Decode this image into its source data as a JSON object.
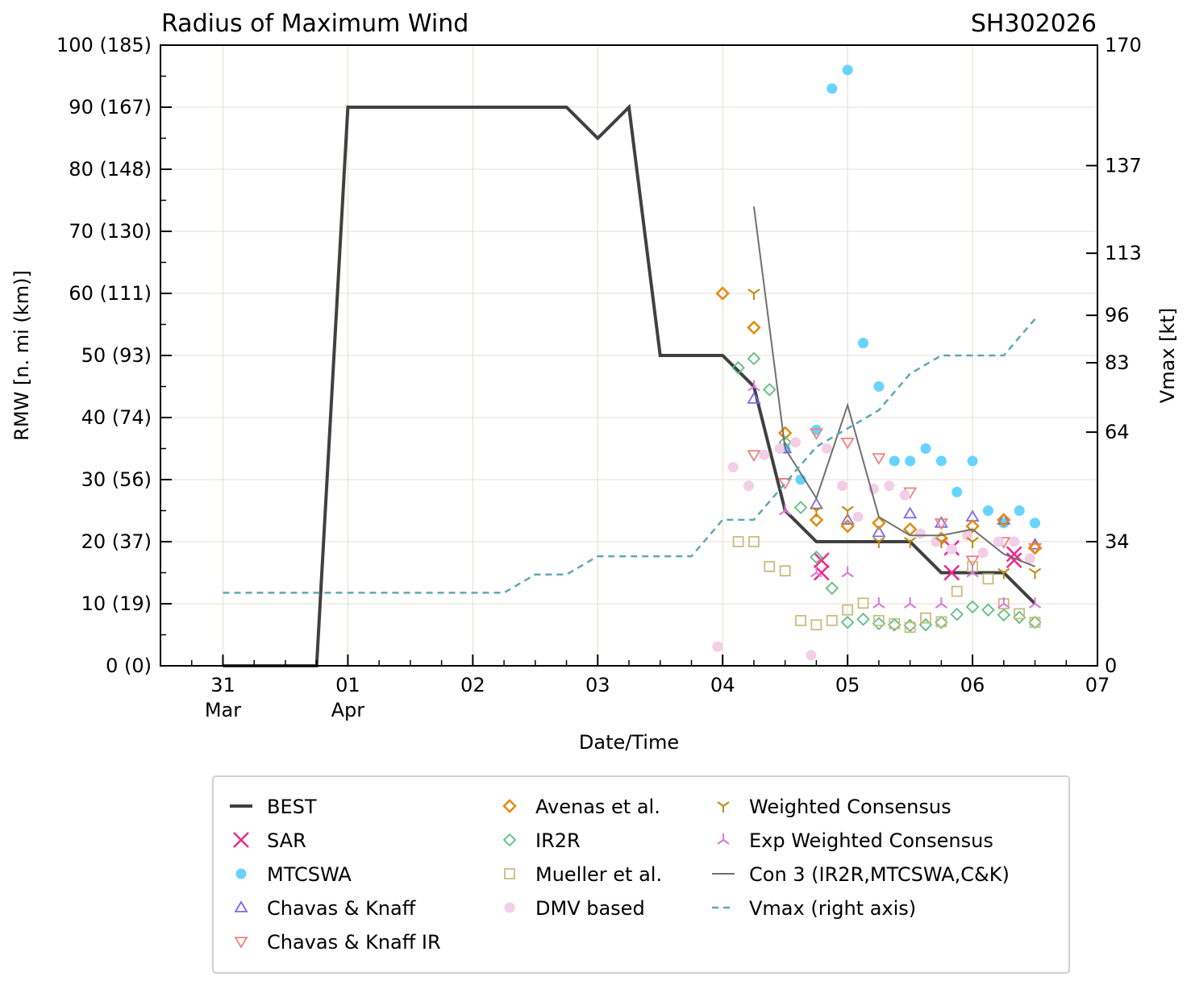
{
  "chart_data": {
    "type": "line",
    "title": "Radius of Maximum Wind",
    "storm_id": "SH302026",
    "xlabel": "Date/Time",
    "ylabel": "RMW [n. mi (km)]",
    "ylabel_right": "Vmax [kt]",
    "xlim": [
      "03-30 12:00",
      "04-07 00:00"
    ],
    "ylim": [
      0,
      100
    ],
    "ylim_right": [
      0,
      170
    ],
    "grid": true,
    "legend_placement": "below",
    "x_ticks": [
      {
        "at": "03-31 00:00",
        "day": "31",
        "month": "Mar"
      },
      {
        "at": "04-01 00:00",
        "day": "01",
        "month": "Apr"
      },
      {
        "at": "04-02 00:00",
        "day": "02",
        "month": ""
      },
      {
        "at": "04-03 00:00",
        "day": "03",
        "month": ""
      },
      {
        "at": "04-04 00:00",
        "day": "04",
        "month": ""
      },
      {
        "at": "04-05 00:00",
        "day": "05",
        "month": ""
      },
      {
        "at": "04-06 00:00",
        "day": "06",
        "month": ""
      },
      {
        "at": "04-07 00:00",
        "day": "07",
        "month": ""
      }
    ],
    "y_ticks": [
      {
        "v": 0,
        "label": "0 (0)"
      },
      {
        "v": 10,
        "label": "10 (19)"
      },
      {
        "v": 20,
        "label": "20 (37)"
      },
      {
        "v": 30,
        "label": "30 (56)"
      },
      {
        "v": 40,
        "label": "40 (74)"
      },
      {
        "v": 50,
        "label": "50 (93)"
      },
      {
        "v": 60,
        "label": "60 (111)"
      },
      {
        "v": 70,
        "label": "70 (130)"
      },
      {
        "v": 80,
        "label": "80 (148)"
      },
      {
        "v": 90,
        "label": "90 (167)"
      },
      {
        "v": 100,
        "label": "100 (185)"
      }
    ],
    "y_ticks_right": [
      0,
      34,
      64,
      83,
      96,
      113,
      137,
      170
    ],
    "series": [
      {
        "name": "BEST",
        "kind": "line",
        "color": "#404040",
        "points": [
          [
            "03-31 00:00",
            0
          ],
          [
            "03-31 18:00",
            0
          ],
          [
            "04-01 00:00",
            90
          ],
          [
            "04-02 18:00",
            90
          ],
          [
            "04-03 00:00",
            85
          ],
          [
            "04-03 06:00",
            90
          ],
          [
            "04-03 12:00",
            50
          ],
          [
            "04-04 00:00",
            50
          ],
          [
            "04-04 06:00",
            45
          ],
          [
            "04-04 12:00",
            25
          ],
          [
            "04-04 18:00",
            20
          ],
          [
            "04-05 12:00",
            20
          ],
          [
            "04-05 18:00",
            15
          ],
          [
            "04-06 06:00",
            15
          ],
          [
            "04-06 12:00",
            10
          ]
        ]
      },
      {
        "name": "SAR",
        "kind": "x",
        "color": "#f0288c",
        "points": [
          [
            "04-04 19:00",
            17
          ],
          [
            "04-04 19:00",
            15
          ],
          [
            "04-05 20:00",
            19
          ],
          [
            "04-05 20:00",
            15
          ],
          [
            "04-06 08:00",
            18
          ],
          [
            "04-06 08:00",
            17
          ]
        ]
      },
      {
        "name": "MTCSWA",
        "kind": "circle",
        "color": "#66d4ff",
        "points": [
          [
            "04-04 12:00",
            35
          ],
          [
            "04-04 15:00",
            30
          ],
          [
            "04-04 18:00",
            38
          ],
          [
            "04-04 21:00",
            93
          ],
          [
            "04-05 00:00",
            96
          ],
          [
            "04-05 03:00",
            52
          ],
          [
            "04-05 06:00",
            45
          ],
          [
            "04-05 09:00",
            33
          ],
          [
            "04-05 12:00",
            33
          ],
          [
            "04-05 15:00",
            35
          ],
          [
            "04-05 18:00",
            33
          ],
          [
            "04-05 21:00",
            28
          ],
          [
            "04-06 00:00",
            33
          ],
          [
            "04-06 03:00",
            25
          ],
          [
            "04-06 06:00",
            23
          ],
          [
            "04-06 09:00",
            25
          ],
          [
            "04-06 12:00",
            23
          ]
        ]
      },
      {
        "name": "Chavas & Knaff",
        "kind": "tri-up",
        "color": "#7b68ee",
        "points": [
          [
            "04-04 06:00",
            43
          ],
          [
            "04-04 12:00",
            35
          ],
          [
            "04-04 18:00",
            26
          ],
          [
            "04-05 00:00",
            23.5
          ],
          [
            "04-05 06:00",
            21.5
          ],
          [
            "04-05 12:00",
            24.5
          ],
          [
            "04-05 18:00",
            23
          ],
          [
            "04-06 00:00",
            24
          ],
          [
            "04-06 06:00",
            23.5
          ],
          [
            "04-06 12:00",
            19.5
          ]
        ]
      },
      {
        "name": "Chavas & Knaff IR",
        "kind": "tri-down",
        "color": "#f08080",
        "points": [
          [
            "04-04 06:00",
            34
          ],
          [
            "04-04 12:00",
            29.5
          ],
          [
            "04-04 18:00",
            37.5
          ],
          [
            "04-05 00:00",
            36
          ],
          [
            "04-05 06:00",
            33.5
          ],
          [
            "04-05 12:00",
            28
          ],
          [
            "04-05 18:00",
            23
          ],
          [
            "04-06 00:00",
            17
          ],
          [
            "04-06 06:00",
            20
          ],
          [
            "04-06 12:00",
            19
          ]
        ]
      },
      {
        "name": "Avenas et al.",
        "kind": "diamond",
        "color": "#e08c10",
        "points": [
          [
            "04-04 00:00",
            60
          ],
          [
            "04-04 06:00",
            54.5
          ],
          [
            "04-04 12:00",
            37.5
          ],
          [
            "04-04 18:00",
            23.5
          ],
          [
            "04-05 00:00",
            22.5
          ],
          [
            "04-05 06:00",
            23
          ],
          [
            "04-05 12:00",
            22
          ],
          [
            "04-05 18:00",
            20.5
          ],
          [
            "04-06 00:00",
            22.5
          ],
          [
            "04-06 06:00",
            23.5
          ],
          [
            "04-06 12:00",
            19
          ]
        ]
      },
      {
        "name": "IR2R",
        "kind": "diamond",
        "color": "#5cbf80",
        "points": [
          [
            "04-04 03:00",
            48
          ],
          [
            "04-04 06:00",
            49.5
          ],
          [
            "04-04 09:00",
            44.5
          ],
          [
            "04-04 12:00",
            36
          ],
          [
            "04-04 15:00",
            25.5
          ],
          [
            "04-04 18:00",
            17.5
          ],
          [
            "04-04 21:00",
            12.5
          ],
          [
            "04-05 00:00",
            7
          ],
          [
            "04-05 03:00",
            7.5
          ],
          [
            "04-05 06:00",
            6.8
          ],
          [
            "04-05 09:00",
            6.6
          ],
          [
            "04-05 12:00",
            6.5
          ],
          [
            "04-05 15:00",
            6.6
          ],
          [
            "04-05 18:00",
            7
          ],
          [
            "04-05 21:00",
            8.3
          ],
          [
            "04-06 00:00",
            9.5
          ],
          [
            "04-06 03:00",
            9
          ],
          [
            "04-06 06:00",
            8.2
          ],
          [
            "04-06 09:00",
            7.8
          ],
          [
            "04-06 12:00",
            7
          ]
        ]
      },
      {
        "name": "Mueller et al.",
        "kind": "square",
        "color": "#c8bd80",
        "points": [
          [
            "04-04 03:00",
            20
          ],
          [
            "04-04 06:00",
            20
          ],
          [
            "04-04 09:00",
            16
          ],
          [
            "04-04 12:00",
            15.3
          ],
          [
            "04-04 15:00",
            7.3
          ],
          [
            "04-04 18:00",
            6.6
          ],
          [
            "04-04 21:00",
            7.3
          ],
          [
            "04-05 00:00",
            9
          ],
          [
            "04-05 03:00",
            10.1
          ],
          [
            "04-05 06:00",
            7.3
          ],
          [
            "04-05 09:00",
            6.8
          ],
          [
            "04-05 12:00",
            6.2
          ],
          [
            "04-05 15:00",
            7.7
          ],
          [
            "04-05 18:00",
            7.1
          ],
          [
            "04-05 21:00",
            12
          ],
          [
            "04-06 00:00",
            16
          ],
          [
            "04-06 03:00",
            14
          ],
          [
            "04-06 06:00",
            10
          ],
          [
            "04-06 09:00",
            8.4
          ],
          [
            "04-06 12:00",
            7
          ]
        ]
      },
      {
        "name": "DMV based",
        "kind": "dot",
        "color": "#f2cfe6",
        "points": [
          [
            "04-03 23:00",
            3.1
          ],
          [
            "04-04 02:00",
            32
          ],
          [
            "04-04 05:00",
            29
          ],
          [
            "04-04 08:00",
            34
          ],
          [
            "04-04 11:00",
            35
          ],
          [
            "04-04 14:00",
            36
          ],
          [
            "04-04 17:00",
            1.7
          ],
          [
            "04-04 20:00",
            35
          ],
          [
            "04-04 23:00",
            29
          ],
          [
            "04-05 02:00",
            24
          ],
          [
            "04-05 05:00",
            28.5
          ],
          [
            "04-05 08:00",
            29
          ],
          [
            "04-05 11:00",
            27.5
          ],
          [
            "04-05 14:00",
            21.3
          ],
          [
            "04-05 17:00",
            20
          ],
          [
            "04-05 20:00",
            18.8
          ],
          [
            "04-05 23:00",
            21
          ],
          [
            "04-06 02:00",
            18.2
          ],
          [
            "04-06 05:00",
            20
          ],
          [
            "04-06 08:00",
            20
          ],
          [
            "04-06 11:00",
            17.3
          ]
        ]
      },
      {
        "name": "Weighted Consensus",
        "kind": "y",
        "color": "#c08a10",
        "points": [
          [
            "04-04 06:00",
            60
          ],
          [
            "04-04 18:00",
            25
          ],
          [
            "04-05 00:00",
            25
          ],
          [
            "04-05 06:00",
            20
          ],
          [
            "04-05 12:00",
            20
          ],
          [
            "04-05 18:00",
            20
          ],
          [
            "04-06 00:00",
            20
          ],
          [
            "04-06 06:00",
            15
          ],
          [
            "04-06 12:00",
            15
          ]
        ]
      },
      {
        "name": "Exp Weighted Consensus",
        "kind": "y-inv",
        "color": "#d878d8",
        "points": [
          [
            "04-04 06:00",
            45
          ],
          [
            "04-04 12:00",
            25
          ],
          [
            "04-04 18:00",
            15
          ],
          [
            "04-05 00:00",
            15
          ],
          [
            "04-05 06:00",
            10
          ],
          [
            "04-05 12:00",
            10
          ],
          [
            "04-05 18:00",
            10
          ],
          [
            "04-06 00:00",
            15
          ],
          [
            "04-06 06:00",
            10
          ],
          [
            "04-06 12:00",
            10
          ]
        ]
      },
      {
        "name": "Con 3 (IR2R,MTCSWA,C&K)",
        "kind": "thinline",
        "color": "#707070",
        "points": [
          [
            "04-04 06:00",
            74
          ],
          [
            "04-04 12:00",
            35
          ],
          [
            "04-04 18:00",
            27
          ],
          [
            "04-05 00:00",
            42
          ],
          [
            "04-05 06:00",
            24
          ],
          [
            "04-05 12:00",
            21
          ],
          [
            "04-05 18:00",
            21
          ],
          [
            "04-06 00:00",
            22
          ],
          [
            "04-06 06:00",
            18
          ],
          [
            "04-06 12:00",
            16
          ]
        ]
      },
      {
        "name": "Vmax (right axis)",
        "kind": "dashed",
        "axis": "right",
        "color": "#5fa8b0",
        "points": [
          [
            "03-31 00:00",
            20
          ],
          [
            "04-02 06:00",
            20
          ],
          [
            "04-02 12:00",
            25
          ],
          [
            "04-02 18:00",
            25
          ],
          [
            "04-03 00:00",
            30
          ],
          [
            "04-03 18:00",
            30
          ],
          [
            "04-04 00:00",
            40
          ],
          [
            "04-04 06:00",
            40
          ],
          [
            "04-04 12:00",
            50
          ],
          [
            "04-04 18:00",
            60
          ],
          [
            "04-05 00:00",
            65
          ],
          [
            "04-05 06:00",
            70
          ],
          [
            "04-05 12:00",
            80
          ],
          [
            "04-05 18:00",
            85
          ],
          [
            "04-06 06:00",
            85
          ],
          [
            "04-06 12:00",
            95
          ]
        ]
      }
    ],
    "legend_order": [
      0,
      1,
      2,
      3,
      4,
      5,
      6,
      7,
      8,
      9,
      10,
      11,
      12
    ]
  }
}
